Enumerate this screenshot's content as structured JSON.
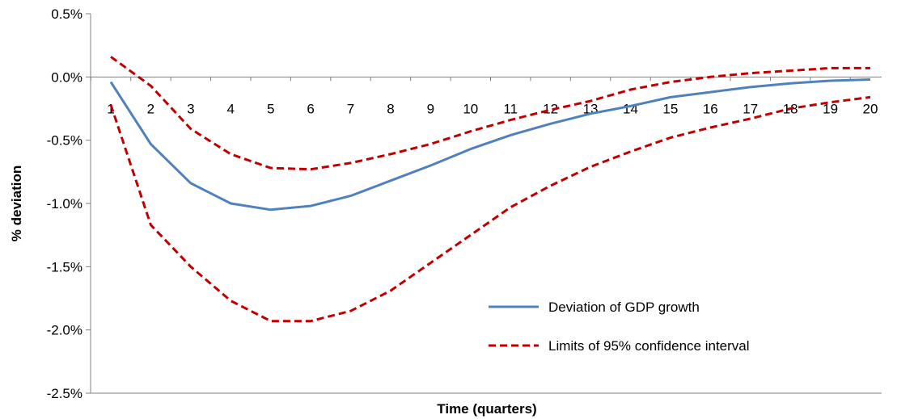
{
  "chart_data": {
    "type": "line",
    "xlabel": "Time (quarters)",
    "ylabel": "% deviation",
    "ylim": [
      -2.5,
      0.5
    ],
    "yticks": [
      0.5,
      0.0,
      -0.5,
      -1.0,
      -1.5,
      -2.0,
      -2.5
    ],
    "ytick_labels": [
      "0.5%",
      "0.0%",
      "-0.5%",
      "-1.0%",
      "-1.5%",
      "-2.0%",
      "-2.5%"
    ],
    "x": [
      1,
      2,
      3,
      4,
      5,
      6,
      7,
      8,
      9,
      10,
      11,
      12,
      13,
      14,
      15,
      16,
      17,
      18,
      19,
      20
    ],
    "grid": "horizontal-zero-line-only",
    "legend_position": "bottom-right",
    "series": [
      {
        "name": "Deviation of GDP growth",
        "style": "solid",
        "color": "#4F81BD",
        "values": [
          -0.04,
          -0.53,
          -0.84,
          -1.0,
          -1.05,
          -1.02,
          -0.94,
          -0.82,
          -0.7,
          -0.57,
          -0.46,
          -0.37,
          -0.29,
          -0.23,
          -0.16,
          -0.12,
          -0.08,
          -0.05,
          -0.03,
          -0.02
        ]
      },
      {
        "name": "Limits of 95% confidence interval",
        "style": "dashed",
        "color": "#C00000",
        "values": [
          0.16,
          -0.07,
          -0.41,
          -0.61,
          -0.72,
          -0.73,
          -0.68,
          -0.61,
          -0.53,
          -0.43,
          -0.34,
          -0.26,
          -0.19,
          -0.1,
          -0.04,
          0.0,
          0.03,
          0.05,
          0.07,
          0.07
        ]
      },
      {
        "name": "",
        "style": "dashed",
        "color": "#C00000",
        "values": [
          -0.22,
          -1.17,
          -1.5,
          -1.77,
          -1.93,
          -1.93,
          -1.85,
          -1.69,
          -1.47,
          -1.25,
          -1.03,
          -0.86,
          -0.71,
          -0.59,
          -0.48,
          -0.4,
          -0.33,
          -0.25,
          -0.2,
          -0.16
        ]
      }
    ]
  }
}
